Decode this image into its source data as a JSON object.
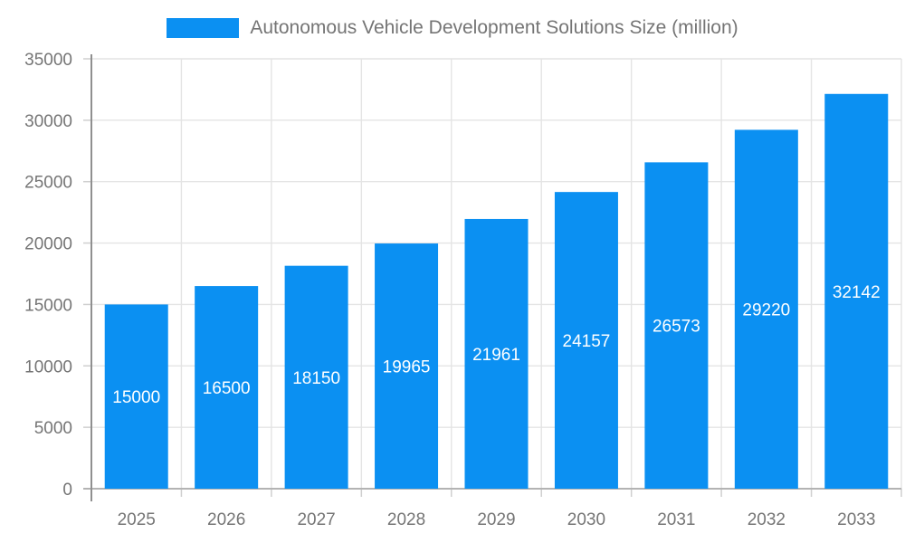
{
  "legend": {
    "label": "Autonomous Vehicle Development Solutions Size (million)"
  },
  "colors": {
    "bar": "#0b90f2",
    "bar_label_text": "#ffffff",
    "axis_label_text": "#757575",
    "title_text": "#757575",
    "grid_line": "#e4e4e4",
    "y_axis_line": "#8f8f8f",
    "x_axis_line": "#b3b3b3",
    "tick_mark": "#cfcfcf",
    "background": "#ffffff"
  },
  "chart_data": {
    "type": "bar",
    "title": "Autonomous Vehicle Development Solutions Size (million)",
    "categories": [
      "2025",
      "2026",
      "2027",
      "2028",
      "2029",
      "2030",
      "2031",
      "2032",
      "2033"
    ],
    "values": [
      15000,
      16500,
      18150,
      19965,
      21961,
      24157,
      26573,
      29220,
      32142
    ],
    "xlabel": "",
    "ylabel": "",
    "ylim": [
      0,
      35000
    ],
    "ytick_step": 5000,
    "ytick_labels": [
      "0",
      "5000",
      "10000",
      "15000",
      "20000",
      "25000",
      "30000",
      "35000"
    ],
    "grid": true,
    "legend_position": "top",
    "bar_value_labels": "inside-centered"
  }
}
